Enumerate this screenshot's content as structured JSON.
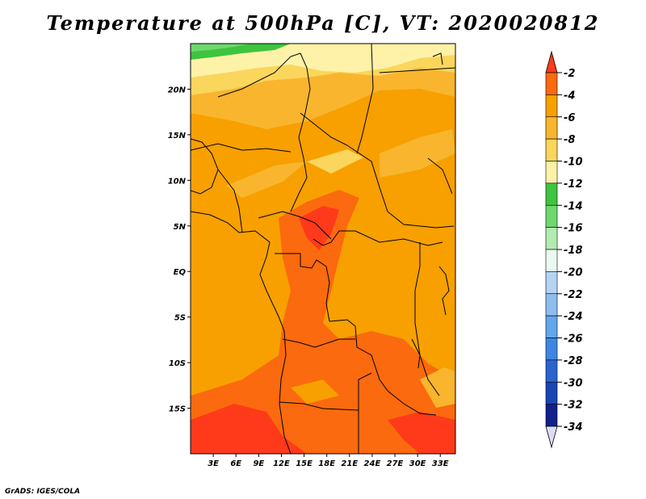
{
  "title": "Temperature at 500hPa [C], VT: 2020020812",
  "credit": "GrADS: IGES/COLA",
  "map": {
    "lon_range": [
      0,
      35
    ],
    "lat_range": [
      -20,
      25
    ],
    "lon_ticks": [
      "3E",
      "6E",
      "9E",
      "12E",
      "15E",
      "18E",
      "21E",
      "24E",
      "27E",
      "30E",
      "33E"
    ],
    "lat_ticks": [
      "20N",
      "15N",
      "10N",
      "5N",
      "EQ",
      "5S",
      "10S",
      "15S"
    ]
  },
  "colorbar": {
    "labels": [
      "-2",
      "-4",
      "-6",
      "-8",
      "-10",
      "-12",
      "-14",
      "-16",
      "-18",
      "-20",
      "-22",
      "-24",
      "-26",
      "-28",
      "-30",
      "-32",
      "-34"
    ],
    "colors": [
      "#ff3a1a",
      "#fb6a0e",
      "#f7a000",
      "#f9b52e",
      "#fad65c",
      "#fef2a8",
      "#3ec43e",
      "#6ed86e",
      "#b2ecb2",
      "#eafaf0",
      "#b4d4f4",
      "#8ebef0",
      "#64a6ee",
      "#3e86e4",
      "#2a64d0",
      "#1a46b4",
      "#12208c",
      "#0a0a60"
    ],
    "arrow_low_color": "#dcdcf4"
  }
}
